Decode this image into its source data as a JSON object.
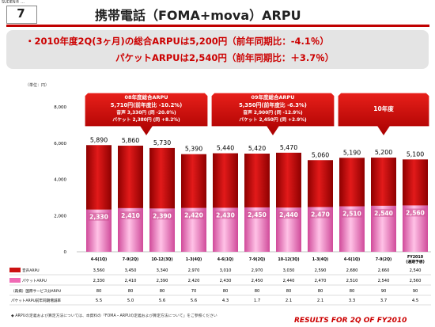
{
  "brand": "SUDEN® ...",
  "page_number": "7",
  "title": "携帯電話（FOMA+mova）ARPU",
  "summary": {
    "line1": "・2010年度2Q(3ヶ月)の総合ARPUは5,200円（前年同期比：-4.1％）",
    "line2": "パケットARPUは2,540円（前年同期比：＋3.7％）"
  },
  "unit_label": "（単位：円）",
  "colors": {
    "accent": "#cc0000",
    "bar_top": "#cc1111",
    "bar_bottom": "#f06ab4"
  },
  "chart_data": {
    "type": "bar",
    "stacked": true,
    "categories": [
      "4-6(1Q)",
      "7-9(2Q)",
      "10-12(3Q)",
      "1-3(4Q)",
      "4-6(1Q)",
      "7-9(2Q)",
      "10-12(3Q)",
      "1-3(4Q)",
      "4-6(1Q)",
      "7-9(2Q)",
      "FY2010 (通期予想)"
    ],
    "yticks": [
      0,
      2000,
      4000,
      6000,
      8000
    ],
    "ylim": [
      0,
      8000
    ],
    "total_labels": [
      "5,890",
      "5,860",
      "5,730",
      "5,390",
      "5,440",
      "5,420",
      "5,470",
      "5,060",
      "5,190",
      "5,200",
      "5,100"
    ],
    "series": [
      {
        "name": "パケットARPU",
        "values": [
          2330,
          2410,
          2390,
          2420,
          2430,
          2450,
          2440,
          2470,
          2510,
          2540,
          2560
        ],
        "labels": [
          "2,330",
          "2,410",
          "2,390",
          "2,420",
          "2,430",
          "2,450",
          "2,440",
          "2,470",
          "2,510",
          "2,540",
          "2,560"
        ]
      },
      {
        "name": "音声ARPU",
        "values": [
          3560,
          3450,
          3340,
          2970,
          3010,
          2970,
          3030,
          2590,
          2680,
          2660,
          2540
        ]
      }
    ],
    "period_headers": [
      {
        "lines": [
          "08年度総合ARPU",
          "5,710円(前年度比 -10.2%)",
          "音声  3,330円 (同 -20.0%)",
          "パケット 2,380円 (同 +8.2%)"
        ],
        "start": 0,
        "end": 3
      },
      {
        "lines": [
          "09年度総合ARPU",
          "5,350円(前年度比 -6.3%)",
          "音声  2,900円 (同 -12.9%)",
          "パケット 2,450円 (同 +2.9%)"
        ],
        "start": 4,
        "end": 7
      },
      {
        "lines": [
          "10年度"
        ],
        "start": 8,
        "end": 10
      }
    ],
    "table": {
      "rows": [
        {
          "label": "音声ARPU",
          "swatch": "#cc1111",
          "values": [
            "3,560",
            "3,450",
            "3,340",
            "2,970",
            "3,010",
            "2,970",
            "3,030",
            "2,590",
            "2,680",
            "2,660",
            "2,540"
          ]
        },
        {
          "label": "パケットARPU",
          "swatch": "#f06ab4",
          "values": [
            "2,330",
            "2,410",
            "2,390",
            "2,420",
            "2,430",
            "2,450",
            "2,440",
            "2,470",
            "2,510",
            "2,540",
            "2,560"
          ]
        },
        {
          "label": "（再掲）国際サービス分ARPU",
          "swatch": "",
          "values": [
            "80",
            "80",
            "80",
            "70",
            "80",
            "80",
            "80",
            "80",
            "80",
            "90",
            "90"
          ]
        },
        {
          "label": "パケットARPU前年同期増減率",
          "swatch": "",
          "values": [
            "5.5",
            "5.0",
            "5.6",
            "5.6",
            "4.3",
            "1.7",
            "2.1",
            "2.1",
            "3.3",
            "3.7",
            "4.5"
          ]
        }
      ]
    }
  },
  "footnote": "◆ ARPUの定義および算定方法については、本資料の「FOMA・ARPUの定義および算定方法について」をご参照ください",
  "footer": "RESULTS FOR 2Q OF FY2010"
}
